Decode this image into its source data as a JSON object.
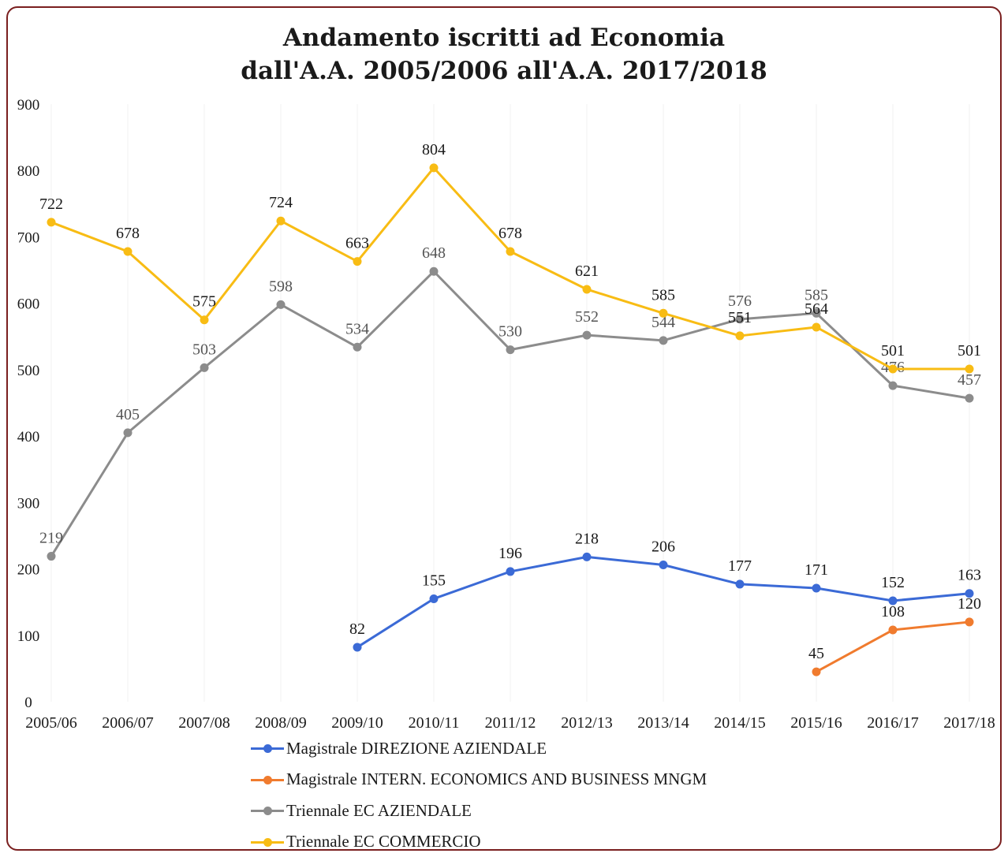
{
  "chart_data": {
    "type": "line",
    "title": "Andamento iscritti ad Economia",
    "subtitle": "dall'A.A. 2005/2006 all'A.A. 2017/2018",
    "categories": [
      "2005/06",
      "2006/07",
      "2007/08",
      "2008/09",
      "2009/10",
      "2010/11",
      "2011/12",
      "2012/13",
      "2013/14",
      "2014/15",
      "2015/16",
      "2016/17",
      "2017/18"
    ],
    "yticks": [
      "0",
      "100",
      "200",
      "300",
      "400",
      "500",
      "600",
      "700",
      "800",
      "900"
    ],
    "ylim": [
      0,
      900
    ],
    "grid": true,
    "legend_position": "bottom",
    "series": [
      {
        "name": "Magistrale DIREZIONE AZIENDALE",
        "color": "#3b6ad6",
        "values": [
          null,
          null,
          null,
          null,
          82,
          155,
          196,
          218,
          206,
          177,
          171,
          152,
          163
        ]
      },
      {
        "name": "Magistrale INTERN. ECONOMICS AND BUSINESS MNGM",
        "color": "#f07b2e",
        "values": [
          null,
          null,
          null,
          null,
          null,
          null,
          null,
          null,
          null,
          null,
          45,
          108,
          120
        ]
      },
      {
        "name": "Triennale EC AZIENDALE",
        "color": "#8c8c8c",
        "values": [
          219,
          405,
          503,
          598,
          534,
          648,
          530,
          552,
          544,
          576,
          585,
          476,
          457
        ]
      },
      {
        "name": "Triennale EC COMMERCIO",
        "color": "#f8bc14",
        "values": [
          722,
          678,
          575,
          724,
          663,
          804,
          678,
          621,
          585,
          551,
          564,
          501,
          501
        ]
      }
    ]
  }
}
